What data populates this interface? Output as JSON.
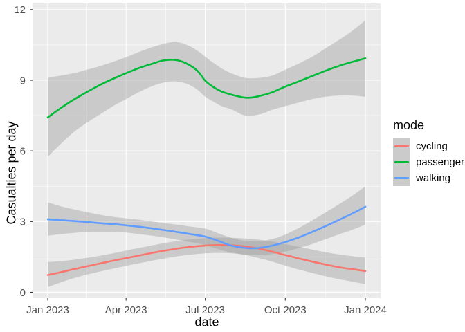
{
  "chart_data": {
    "type": "line",
    "title": "",
    "xlabel": "date",
    "ylabel": "Casualties per day",
    "x_axis": {
      "unit": "days_since_2023-01-01",
      "ticks": [
        {
          "day": 0,
          "label": "Jan 2023"
        },
        {
          "day": 90,
          "label": "Apr 2023"
        },
        {
          "day": 181,
          "label": "Jul 2023"
        },
        {
          "day": 273,
          "label": "Oct 2023"
        },
        {
          "day": 365,
          "label": "Jan 2024"
        }
      ],
      "minor_days": [
        45,
        135.5,
        227,
        319
      ],
      "domain_days": [
        -17.5,
        382.5
      ]
    },
    "y_axis": {
      "ticks": [
        0,
        3,
        6,
        9,
        12
      ],
      "minor": [
        1.5,
        4.5,
        7.5,
        10.5
      ],
      "domain": [
        -0.25,
        12.26
      ]
    },
    "legend": {
      "title": "mode",
      "position": "right",
      "items": [
        {
          "label": "cycling",
          "color": "#F8766D"
        },
        {
          "label": "passenger",
          "color": "#00BA38"
        },
        {
          "label": "walking",
          "color": "#619CFF"
        }
      ]
    },
    "series": [
      {
        "name": "cycling",
        "color": "#F8766D",
        "points": [
          [
            0,
            0.73
          ],
          [
            15,
            0.85
          ],
          [
            30,
            0.98
          ],
          [
            45,
            1.1
          ],
          [
            60,
            1.22
          ],
          [
            75,
            1.34
          ],
          [
            90,
            1.45
          ],
          [
            105,
            1.56
          ],
          [
            120,
            1.67
          ],
          [
            135,
            1.77
          ],
          [
            150,
            1.86
          ],
          [
            165,
            1.93
          ],
          [
            181,
            1.98
          ],
          [
            192,
            2.0
          ],
          [
            205,
            2.0
          ],
          [
            212,
            1.99
          ],
          [
            227,
            1.94
          ],
          [
            243,
            1.85
          ],
          [
            258,
            1.72
          ],
          [
            273,
            1.58
          ],
          [
            288,
            1.44
          ],
          [
            304,
            1.3
          ],
          [
            319,
            1.18
          ],
          [
            334,
            1.07
          ],
          [
            350,
            0.98
          ],
          [
            365,
            0.9
          ]
        ],
        "ribbon": [
          [
            0,
            0.22,
            1.28
          ],
          [
            15,
            0.42,
            1.32
          ],
          [
            30,
            0.6,
            1.38
          ],
          [
            45,
            0.75,
            1.46
          ],
          [
            60,
            0.88,
            1.55
          ],
          [
            75,
            1.0,
            1.65
          ],
          [
            90,
            1.12,
            1.77
          ],
          [
            105,
            1.23,
            1.88
          ],
          [
            120,
            1.34,
            1.99
          ],
          [
            135,
            1.44,
            2.09
          ],
          [
            150,
            1.53,
            2.18
          ],
          [
            165,
            1.6,
            2.25
          ],
          [
            181,
            1.65,
            2.3
          ],
          [
            196,
            1.67,
            2.32
          ],
          [
            212,
            1.65,
            2.31
          ],
          [
            227,
            1.58,
            2.28
          ],
          [
            243,
            1.45,
            2.23
          ],
          [
            258,
            1.3,
            2.15
          ],
          [
            273,
            1.13,
            2.05
          ],
          [
            288,
            0.97,
            1.93
          ],
          [
            304,
            0.82,
            1.81
          ],
          [
            319,
            0.68,
            1.7
          ],
          [
            334,
            0.56,
            1.61
          ],
          [
            350,
            0.45,
            1.53
          ],
          [
            365,
            0.35,
            1.47
          ]
        ]
      },
      {
        "name": "passenger",
        "color": "#00BA38",
        "points": [
          [
            0,
            7.42
          ],
          [
            15,
            7.82
          ],
          [
            30,
            8.18
          ],
          [
            45,
            8.5
          ],
          [
            60,
            8.8
          ],
          [
            75,
            9.06
          ],
          [
            90,
            9.3
          ],
          [
            105,
            9.52
          ],
          [
            120,
            9.7
          ],
          [
            133,
            9.84
          ],
          [
            147,
            9.86
          ],
          [
            160,
            9.7
          ],
          [
            172,
            9.4
          ],
          [
            181,
            8.98
          ],
          [
            190,
            8.72
          ],
          [
            200,
            8.52
          ],
          [
            212,
            8.38
          ],
          [
            220,
            8.31
          ],
          [
            227,
            8.26
          ],
          [
            235,
            8.27
          ],
          [
            243,
            8.33
          ],
          [
            255,
            8.45
          ],
          [
            265,
            8.6
          ],
          [
            273,
            8.73
          ],
          [
            285,
            8.9
          ],
          [
            295,
            9.05
          ],
          [
            304,
            9.18
          ],
          [
            319,
            9.4
          ],
          [
            334,
            9.6
          ],
          [
            350,
            9.78
          ],
          [
            365,
            9.93
          ]
        ],
        "ribbon": [
          [
            0,
            5.75,
            9.1
          ],
          [
            15,
            6.3,
            9.2
          ],
          [
            30,
            6.8,
            9.3
          ],
          [
            45,
            7.2,
            9.45
          ],
          [
            60,
            7.55,
            9.6
          ],
          [
            75,
            7.9,
            9.78
          ],
          [
            90,
            8.2,
            9.98
          ],
          [
            105,
            8.5,
            10.2
          ],
          [
            120,
            8.75,
            10.4
          ],
          [
            133,
            8.9,
            10.55
          ],
          [
            147,
            8.95,
            10.62
          ],
          [
            160,
            8.85,
            10.5
          ],
          [
            172,
            8.6,
            10.25
          ],
          [
            181,
            8.3,
            10.0
          ],
          [
            190,
            8.1,
            9.75
          ],
          [
            200,
            7.9,
            9.5
          ],
          [
            212,
            7.75,
            9.28
          ],
          [
            227,
            7.5,
            9.1
          ],
          [
            243,
            7.55,
            9.1
          ],
          [
            258,
            7.75,
            9.2
          ],
          [
            273,
            7.9,
            9.45
          ],
          [
            288,
            8.05,
            9.7
          ],
          [
            304,
            8.2,
            10.0
          ],
          [
            319,
            8.3,
            10.35
          ],
          [
            334,
            8.35,
            10.7
          ],
          [
            350,
            8.35,
            11.1
          ],
          [
            365,
            8.3,
            11.55
          ]
        ]
      },
      {
        "name": "walking",
        "color": "#619CFF",
        "points": [
          [
            0,
            3.1
          ],
          [
            15,
            3.06
          ],
          [
            30,
            3.02
          ],
          [
            45,
            2.98
          ],
          [
            60,
            2.93
          ],
          [
            75,
            2.89
          ],
          [
            90,
            2.84
          ],
          [
            105,
            2.78
          ],
          [
            120,
            2.71
          ],
          [
            135,
            2.63
          ],
          [
            150,
            2.55
          ],
          [
            165,
            2.46
          ],
          [
            181,
            2.36
          ],
          [
            196,
            2.18
          ],
          [
            205,
            2.05
          ],
          [
            212,
            1.97
          ],
          [
            220,
            1.91
          ],
          [
            230,
            1.87
          ],
          [
            240,
            1.87
          ],
          [
            250,
            1.92
          ],
          [
            258,
            1.98
          ],
          [
            273,
            2.13
          ],
          [
            288,
            2.32
          ],
          [
            304,
            2.56
          ],
          [
            319,
            2.8
          ],
          [
            334,
            3.06
          ],
          [
            350,
            3.34
          ],
          [
            365,
            3.63
          ]
        ],
        "ribbon": [
          [
            0,
            2.4,
            3.82
          ],
          [
            15,
            2.47,
            3.65
          ],
          [
            30,
            2.52,
            3.52
          ],
          [
            45,
            2.56,
            3.4
          ],
          [
            60,
            2.57,
            3.29
          ],
          [
            75,
            2.56,
            3.2
          ],
          [
            90,
            2.53,
            3.14
          ],
          [
            105,
            2.47,
            3.08
          ],
          [
            120,
            2.4,
            3.0
          ],
          [
            135,
            2.32,
            2.93
          ],
          [
            150,
            2.22,
            2.86
          ],
          [
            165,
            2.12,
            2.78
          ],
          [
            181,
            2.0,
            2.7
          ],
          [
            196,
            1.83,
            2.5
          ],
          [
            212,
            1.68,
            2.3
          ],
          [
            227,
            1.6,
            2.18
          ],
          [
            243,
            1.58,
            2.17
          ],
          [
            258,
            1.62,
            2.26
          ],
          [
            273,
            1.72,
            2.45
          ],
          [
            288,
            1.87,
            2.72
          ],
          [
            304,
            2.05,
            3.05
          ],
          [
            319,
            2.25,
            3.38
          ],
          [
            334,
            2.45,
            3.72
          ],
          [
            350,
            2.65,
            4.1
          ],
          [
            365,
            2.87,
            4.5
          ]
        ]
      }
    ],
    "style": {
      "panel_bg": "#EBEBEB",
      "grid_color": "#FFFFFF",
      "ribbon_fill": "#999999",
      "ribbon_opacity": 0.4,
      "tick_color": "#333333",
      "tick_label_color": "#4D4D4D",
      "line_width": 2.6
    }
  }
}
